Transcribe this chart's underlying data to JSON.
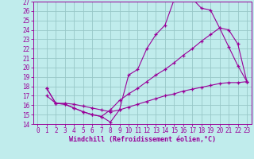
{
  "xlabel": "Windchill (Refroidissement éolien,°C)",
  "background_color": "#c0ecec",
  "grid_color": "#98c8c8",
  "line_color": "#990099",
  "xlim": [
    -0.5,
    23.5
  ],
  "ylim": [
    14,
    27
  ],
  "xticks": [
    0,
    1,
    2,
    3,
    4,
    5,
    6,
    7,
    8,
    9,
    10,
    11,
    12,
    13,
    14,
    15,
    16,
    17,
    18,
    19,
    20,
    21,
    22,
    23
  ],
  "yticks": [
    14,
    15,
    16,
    17,
    18,
    19,
    20,
    21,
    22,
    23,
    24,
    25,
    26,
    27
  ],
  "line1_x": [
    1,
    2,
    3,
    4,
    5,
    6,
    7,
    8,
    9,
    10,
    11,
    12,
    13,
    14,
    15,
    16,
    17,
    18,
    19,
    20,
    21,
    22,
    23
  ],
  "line1_y": [
    17.8,
    16.2,
    16.1,
    15.7,
    15.3,
    15.0,
    14.8,
    14.2,
    15.5,
    19.2,
    19.8,
    22.0,
    23.5,
    24.5,
    27.2,
    27.2,
    27.3,
    26.3,
    26.1,
    24.2,
    22.2,
    20.2,
    18.5
  ],
  "line2_x": [
    1,
    2,
    3,
    4,
    5,
    6,
    7,
    8,
    9,
    10,
    11,
    12,
    13,
    14,
    15,
    16,
    17,
    18,
    19,
    20,
    21,
    22,
    23
  ],
  "line2_y": [
    17.8,
    16.2,
    16.1,
    15.7,
    15.3,
    15.0,
    14.8,
    15.5,
    16.5,
    17.2,
    17.8,
    18.5,
    19.2,
    19.8,
    20.5,
    21.3,
    22.0,
    22.8,
    23.5,
    24.2,
    24.0,
    22.5,
    18.5
  ],
  "line3_x": [
    1,
    2,
    3,
    4,
    5,
    6,
    7,
    8,
    9,
    10,
    11,
    12,
    13,
    14,
    15,
    16,
    17,
    18,
    19,
    20,
    21,
    22,
    23
  ],
  "line3_y": [
    17.0,
    16.2,
    16.2,
    16.1,
    15.9,
    15.7,
    15.5,
    15.3,
    15.5,
    15.8,
    16.1,
    16.4,
    16.7,
    17.0,
    17.2,
    17.5,
    17.7,
    17.9,
    18.1,
    18.3,
    18.4,
    18.4,
    18.5
  ]
}
